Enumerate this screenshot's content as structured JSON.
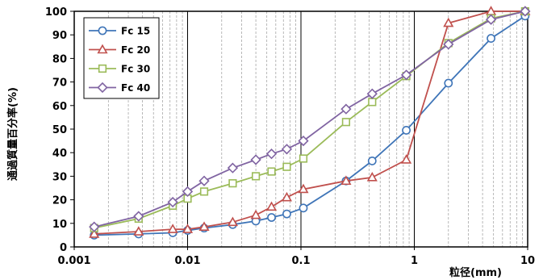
{
  "chart_data": {
    "type": "line",
    "xscale": "log",
    "xlim": [
      0.001,
      10
    ],
    "ylim": [
      0,
      100
    ],
    "xticks": [
      "0.001",
      "0.01",
      "0.1",
      "1",
      "10"
    ],
    "yticks": [
      "0",
      "10",
      "20",
      "30",
      "40",
      "50",
      "60",
      "70",
      "80",
      "90",
      "100"
    ],
    "xlabel": "粒径(mm)",
    "ylabel": "通過質量百分率(%)",
    "grid": true,
    "legend_position": "top-left",
    "series": [
      {
        "name": "Fc 15",
        "color": "#3f75b8",
        "marker": "circle",
        "x": [
          0.0015,
          0.0037,
          0.0074,
          0.01,
          0.014,
          0.025,
          0.04,
          0.055,
          0.075,
          0.105,
          0.25,
          0.425,
          0.85,
          2,
          4.75,
          9.5
        ],
        "y": [
          5,
          5.5,
          6,
          7,
          8,
          9.5,
          11,
          12.5,
          14,
          16.5,
          28,
          36.5,
          49.5,
          69.5,
          88.5,
          98
        ]
      },
      {
        "name": "Fc 20",
        "color": "#c0504d",
        "marker": "triangle",
        "x": [
          0.0015,
          0.0037,
          0.0074,
          0.01,
          0.014,
          0.025,
          0.04,
          0.055,
          0.075,
          0.105,
          0.25,
          0.425,
          0.85,
          2,
          4.75,
          9.5
        ],
        "y": [
          5.5,
          6.5,
          7.5,
          7.5,
          8.5,
          10.5,
          13.5,
          17,
          21,
          24.5,
          28,
          29.5,
          37,
          95,
          100,
          100
        ]
      },
      {
        "name": "Fc 30",
        "color": "#9bbb59",
        "marker": "square",
        "x": [
          0.0015,
          0.0037,
          0.0074,
          0.01,
          0.014,
          0.025,
          0.04,
          0.055,
          0.075,
          0.105,
          0.25,
          0.425,
          0.85,
          2,
          4.75,
          9.5
        ],
        "y": [
          8,
          12,
          17.5,
          20.5,
          23.5,
          27,
          30,
          32,
          34,
          37.5,
          53,
          61.5,
          72.5,
          86.5,
          97,
          100
        ]
      },
      {
        "name": "Fc 40",
        "color": "#8064a2",
        "marker": "diamond",
        "x": [
          0.0015,
          0.0037,
          0.0074,
          0.01,
          0.014,
          0.025,
          0.04,
          0.055,
          0.075,
          0.105,
          0.25,
          0.425,
          0.85,
          2,
          4.75,
          9.5
        ],
        "y": [
          8.5,
          13,
          19,
          23.5,
          28,
          33.5,
          37,
          39.5,
          41.5,
          45,
          58.5,
          65,
          73,
          86,
          96.5,
          100
        ]
      }
    ]
  }
}
